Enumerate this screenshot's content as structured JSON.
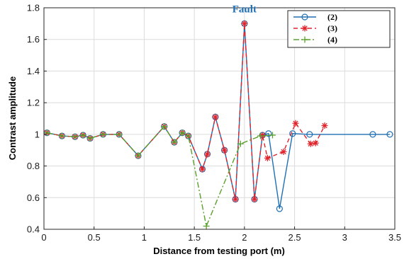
{
  "chart_data": {
    "type": "line",
    "xlabel": "Distance from testing port (m)",
    "ylabel": "Contrast amplitude",
    "xlim": [
      0,
      3.5
    ],
    "ylim": [
      0.4,
      1.8
    ],
    "xticks": [
      0,
      0.5,
      1,
      1.5,
      2,
      2.5,
      3,
      3.5
    ],
    "xtick_labels": [
      "0",
      "0.5",
      "1",
      "1.5",
      "2",
      "2.5",
      "3",
      "3.5"
    ],
    "yticks": [
      0.4,
      0.6,
      0.8,
      1.0,
      1.2,
      1.4,
      1.6,
      1.8
    ],
    "ytick_labels": [
      "0.4",
      "0.6",
      "0.8",
      "1",
      "1.2",
      "1.4",
      "1.6",
      "1.8"
    ],
    "grid": true,
    "legend_position": "top-right",
    "annotation": {
      "text": "Fault",
      "x": 2.0,
      "y": 1.77,
      "color": "#1f6fb4"
    },
    "series": [
      {
        "name": "(2)",
        "color": "#1f6fb4",
        "dash": "",
        "marker": "circle",
        "x": [
          0.03,
          0.18,
          0.31,
          0.39,
          0.46,
          0.59,
          0.75,
          0.94,
          1.2,
          1.3,
          1.38,
          1.44,
          1.58,
          1.63,
          1.71,
          1.8,
          1.91,
          2.0,
          2.1,
          2.18,
          2.24,
          2.35,
          2.48,
          2.65,
          3.28,
          3.45
        ],
        "y": [
          1.01,
          0.99,
          0.985,
          0.995,
          0.975,
          1.0,
          1.0,
          0.865,
          1.05,
          0.95,
          1.01,
          0.99,
          0.78,
          0.875,
          1.11,
          0.9,
          0.59,
          1.7,
          0.59,
          0.995,
          1.005,
          0.53,
          1.005,
          1.0,
          1.0,
          1.0
        ]
      },
      {
        "name": "(3)",
        "color": "#e0232b",
        "dash": "6,4",
        "marker": "star",
        "x": [
          0.03,
          0.18,
          0.31,
          0.39,
          0.46,
          0.59,
          0.75,
          0.94,
          1.2,
          1.3,
          1.38,
          1.44,
          1.58,
          1.63,
          1.71,
          1.8,
          1.91,
          2.0,
          2.1,
          2.18,
          2.23,
          2.39,
          2.51,
          2.66,
          2.71,
          2.8
        ],
        "y": [
          1.01,
          0.99,
          0.985,
          0.995,
          0.975,
          1.0,
          1.0,
          0.865,
          1.05,
          0.95,
          1.01,
          0.99,
          0.78,
          0.875,
          1.11,
          0.9,
          0.59,
          1.7,
          0.59,
          0.995,
          0.85,
          0.89,
          1.07,
          0.94,
          0.945,
          1.055
        ]
      },
      {
        "name": "(4)",
        "color": "#5aa02c",
        "dash": "8,3,2,3",
        "marker": "plus",
        "x": [
          0.03,
          0.18,
          0.31,
          0.39,
          0.46,
          0.59,
          0.75,
          0.94,
          1.2,
          1.3,
          1.38,
          1.44,
          1.62,
          1.96,
          2.16,
          2.28
        ],
        "y": [
          1.01,
          0.99,
          0.985,
          0.995,
          0.975,
          1.0,
          1.0,
          0.865,
          1.05,
          0.95,
          1.01,
          0.99,
          0.42,
          0.94,
          0.99,
          0.995
        ]
      }
    ]
  }
}
